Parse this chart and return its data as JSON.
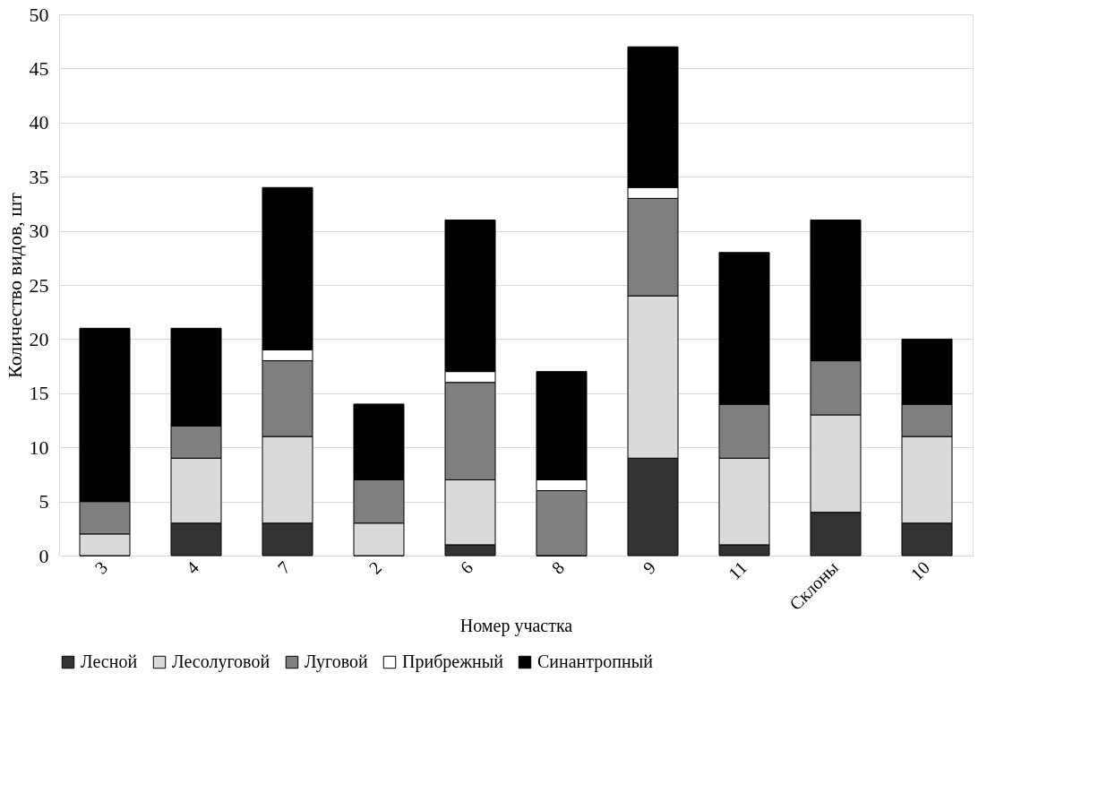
{
  "chart_data": {
    "type": "bar",
    "stacked": true,
    "xlabel": "Номер участка",
    "ylabel": "Количество видов, шт",
    "categories": [
      "3",
      "4",
      "7",
      "2",
      "6",
      "8",
      "9",
      "11",
      "Склоны",
      "10"
    ],
    "series": [
      {
        "name": "Лесной",
        "color": "#333333",
        "values": [
          0,
          3,
          3,
          0,
          1,
          0,
          9,
          1,
          4,
          3
        ]
      },
      {
        "name": "Лесолуговой",
        "color": "#d9d9d9",
        "values": [
          2,
          6,
          8,
          3,
          6,
          0,
          15,
          8,
          9,
          8
        ]
      },
      {
        "name": "Луговой",
        "color": "#7f7f7f",
        "values": [
          3,
          3,
          7,
          4,
          9,
          6,
          9,
          5,
          5,
          3
        ]
      },
      {
        "name": "Прибрежный",
        "color": "#ffffff",
        "values": [
          0,
          0,
          1,
          0,
          1,
          1,
          1,
          0,
          0,
          0
        ]
      },
      {
        "name": "Синантропный",
        "color": "#000000",
        "values": [
          16,
          9,
          15,
          7,
          14,
          10,
          13,
          14,
          13,
          6
        ]
      }
    ],
    "ylim": [
      0,
      50
    ],
    "yticks": [
      0,
      5,
      10,
      15,
      20,
      25,
      30,
      35,
      40,
      45,
      50
    ],
    "grid": "y",
    "legend": "bottom"
  }
}
